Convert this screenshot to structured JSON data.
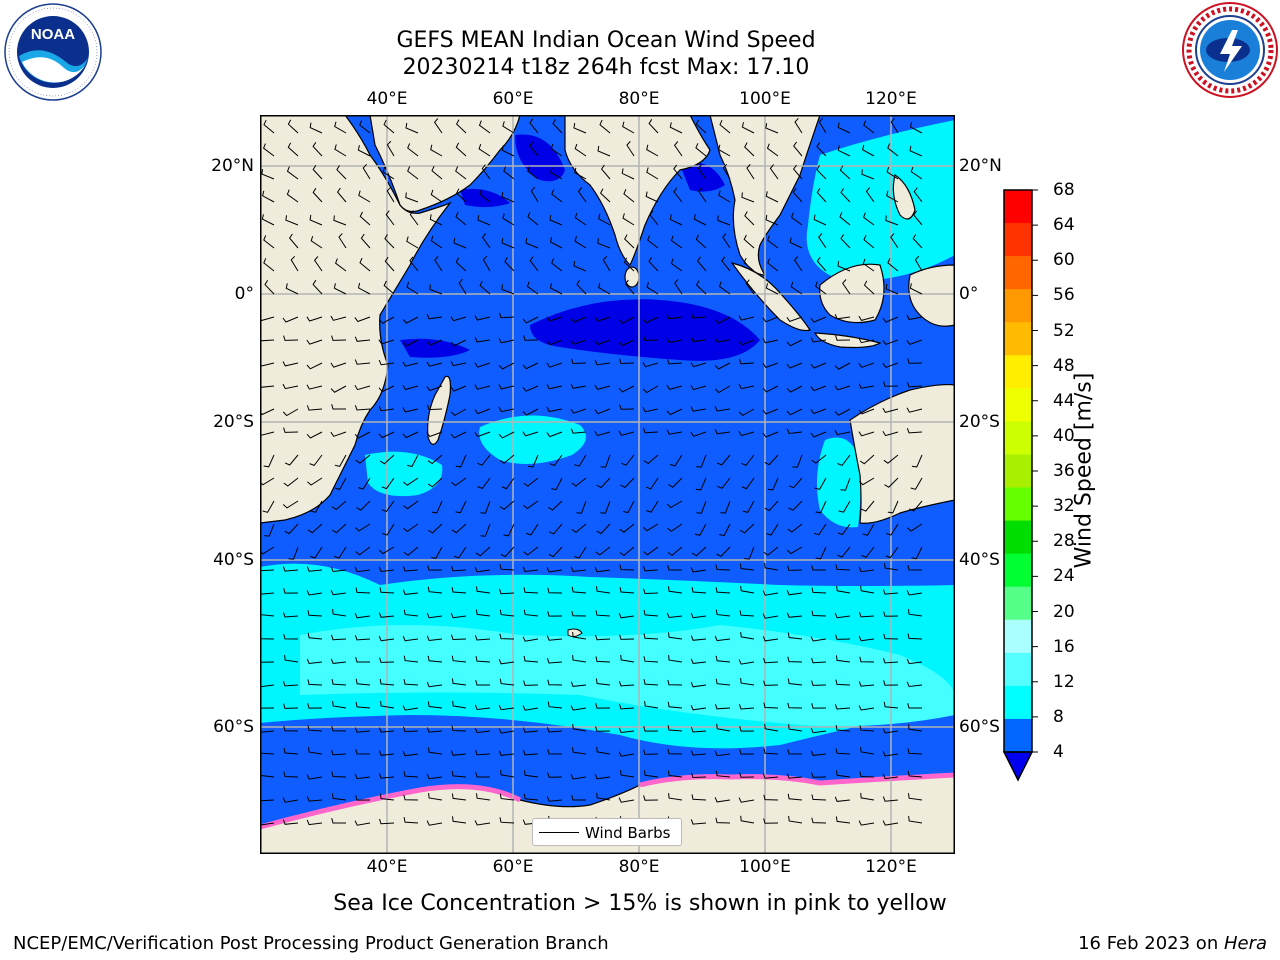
{
  "header": {
    "title_line1": "GEFS MEAN Indian Ocean Wind Speed",
    "title_line2": "20230214 t18z 264h fcst   Max: 17.10"
  },
  "logos": {
    "left": "noaa-logo",
    "right": "nws-logo"
  },
  "map": {
    "lon_ticks": [
      "40°E",
      "60°E",
      "80°E",
      "100°E",
      "120°E"
    ],
    "lat_ticks": [
      "20°N",
      "0°",
      "20°S",
      "40°S",
      "60°S"
    ],
    "lon_range": [
      20,
      130
    ],
    "lat_range": [
      -74,
      28
    ],
    "legend_label": "Wind Barbs",
    "colors": {
      "land": "#efecdc",
      "wind_4_8": "#0f5cff",
      "wind_below_4": "#0000e6",
      "wind_8_12": "#00f6ff",
      "wind_12_16": "#43ffff",
      "sea_ice": "#ff66cc"
    }
  },
  "colorbar": {
    "label": "Wind Speed [m/s]",
    "ticks": [
      "68",
      "64",
      "60",
      "56",
      "52",
      "48",
      "44",
      "40",
      "36",
      "32",
      "28",
      "24",
      "20",
      "16",
      "12",
      "8",
      "4"
    ],
    "colors": [
      "#ff0000",
      "#ff3300",
      "#ff6600",
      "#ff9900",
      "#ffbb00",
      "#ffee00",
      "#eeff00",
      "#ccff00",
      "#a8f000",
      "#66ff00",
      "#00dd00",
      "#00ff33",
      "#55ff88",
      "#aaffff",
      "#55ffff",
      "#00ffff",
      "#0066ff"
    ],
    "underflow_color": "#0000ee"
  },
  "caption": "Sea Ice Concentration > 15% is shown in pink to yellow",
  "footer": {
    "left": "NCEP/EMC/Verification Post Processing Product Generation Branch",
    "right_prefix": "16 Feb 2023 on ",
    "right_italic": "Hera"
  }
}
